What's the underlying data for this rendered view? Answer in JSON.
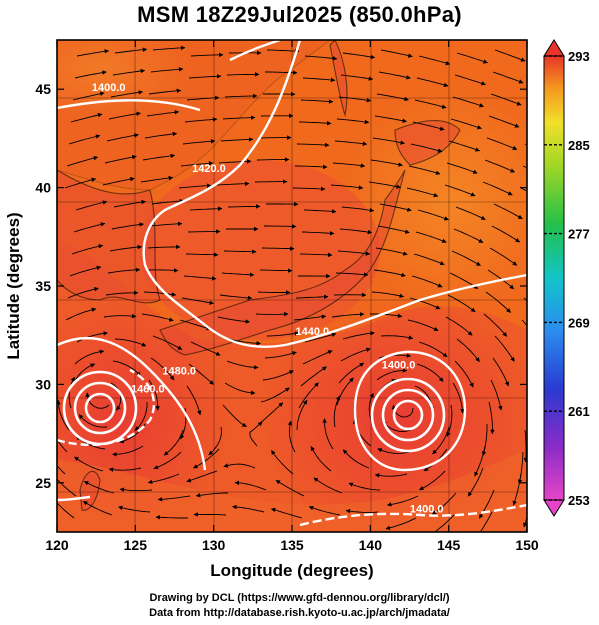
{
  "title": "MSM 18Z29Jul2025 (850.0hPa)",
  "chart_data": {
    "type": "map",
    "xlabel": "Longitude (degrees)",
    "ylabel": "Latitude  (degrees)",
    "xlim": [
      120,
      150
    ],
    "ylim": [
      22.5,
      47.5
    ],
    "x_ticks": [
      120,
      125,
      130,
      135,
      140,
      145,
      150
    ],
    "y_ticks": [
      25,
      30,
      35,
      40,
      45
    ],
    "grid": true,
    "colorbar": {
      "min": 253,
      "max": 293,
      "labels": [
        293,
        285,
        277,
        269,
        261,
        253
      ],
      "placement": "right"
    },
    "contour_labels": [
      {
        "text": "1400.0",
        "lon": 123.3,
        "lat": 44.9
      },
      {
        "text": "1420.0",
        "lon": 129.7,
        "lat": 40.8
      },
      {
        "text": "1440.0",
        "lon": 136.3,
        "lat": 32.5
      },
      {
        "text": "1460.0",
        "lon": 125.8,
        "lat": 29.6
      },
      {
        "text": "1480.0",
        "lon": 127.8,
        "lat": 30.5
      },
      {
        "text": "1400.0",
        "lon": 141.8,
        "lat": 30.8
      },
      {
        "text": "1400.0",
        "lon": 143.6,
        "lat": 23.5
      }
    ],
    "lows": [
      {
        "name": "low-west",
        "lon": 122.8,
        "lat": 29.5
      },
      {
        "name": "low-east",
        "lon": 142.4,
        "lat": 28.9
      }
    ]
  },
  "credits": {
    "line1": "Drawing by DCL (https://www.gfd-dennou.org/library/dcl/)",
    "line2": "Data from http://database.rish.kyoto-u.ac.jp/arch/jmadata/"
  },
  "colors": {
    "field_orange": "#f06a1c",
    "field_red": "#ec4a30",
    "field_warm": "#f58a26",
    "contour": "#ffffff",
    "streamline": "#000000"
  }
}
